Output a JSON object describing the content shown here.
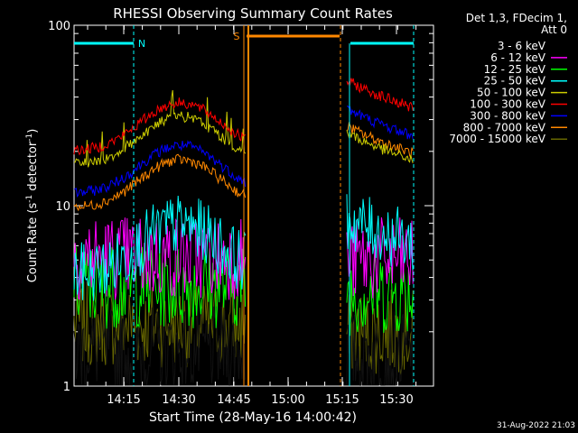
{
  "chart_data": {
    "type": "line",
    "title": "RHESSI Observing Summary Count Rates",
    "xlabel": "Start Time (28-May-16 14:00:42)",
    "ylabel_main": "Count Rate (s",
    "ylabel_sup": "-1",
    "ylabel_mid": " detector",
    "ylabel_sup2": "-1",
    "ylabel_end": ")",
    "y_scale": "log",
    "ylim": [
      1,
      100
    ],
    "xlim_minutes": [
      0.3,
      40.5
    ],
    "y_ticks": [
      "1",
      "10",
      "100"
    ],
    "x_ticks": [
      "14:15",
      "14:30",
      "14:45",
      "15:00",
      "15:15",
      "15:30"
    ],
    "x_tick_minutes": [
      14.3,
      29.3,
      44.3,
      59.3,
      74.3,
      89.3
    ],
    "legend_header": [
      "Det 1,3, FDecim 1,",
      "Att 0"
    ],
    "series": [
      {
        "name": "3 - 6 keV",
        "color": "#000000",
        "level_early": 1.6,
        "level_late": 1.5
      },
      {
        "name": "6 - 12 keV",
        "color": "#ff00ff",
        "level_early": 5.2,
        "level_late": 5.0
      },
      {
        "name": "12 - 25 keV",
        "color": "#00ff00",
        "level_early": 3.6,
        "level_late": 3.3
      },
      {
        "name": "25 - 50 keV",
        "color": "#00ffff",
        "level_early": 4.6,
        "level_late": 6.5
      },
      {
        "name": "50 - 100 keV",
        "color": "#cccc00",
        "level_early": 26,
        "level_late": 22
      },
      {
        "name": "100 - 300 keV",
        "color": "#ff0000",
        "level_early": 31,
        "level_late": 43
      },
      {
        "name": "300 - 800 keV",
        "color": "#0000ff",
        "level_early": 18,
        "level_late": 30
      },
      {
        "name": "800 - 7000 keV",
        "color": "#ff8800",
        "level_early": 15,
        "level_late": 24
      },
      {
        "name": "7000 - 15000 keV",
        "color": "#666600",
        "level_early": 2.2,
        "level_late": 2.0
      }
    ],
    "flags": [
      {
        "label": "N",
        "color": "#00ffff"
      },
      {
        "label": "S",
        "color": "#ff8800"
      }
    ],
    "timestamp": "31-Aug-2022 21:03"
  }
}
